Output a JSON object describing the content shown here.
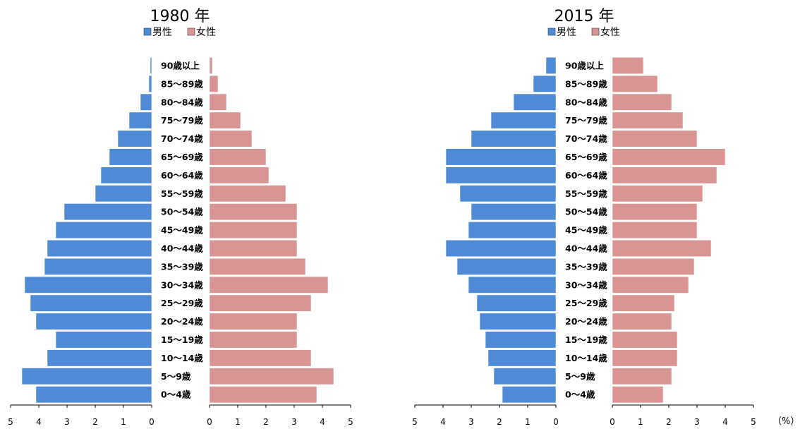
{
  "unit_label": "（%）",
  "chart_data": [
    {
      "type": "bar",
      "orientation": "horizontal-butterfly",
      "title": "1980 年",
      "legend": {
        "placement": "top",
        "entries": [
          "男性",
          "女性"
        ]
      },
      "categories": [
        "0～4歳",
        "5～9歳",
        "10～14歳",
        "15～19歳",
        "20～24歳",
        "25～29歳",
        "30～34歳",
        "35～39歳",
        "40～44歳",
        "45～49歳",
        "50～54歳",
        "55～59歳",
        "60～64歳",
        "65～69歳",
        "70～74歳",
        "75～79歳",
        "80～84歳",
        "85～89歳",
        "90歳以上"
      ],
      "xlim": [
        0,
        5
      ],
      "ticks": [
        "0",
        "1",
        "2",
        "3",
        "4",
        "5"
      ],
      "series": [
        {
          "name": "男性",
          "color": "#4f8ad6",
          "values": [
            4.1,
            4.6,
            3.7,
            3.4,
            4.1,
            4.3,
            4.5,
            3.8,
            3.7,
            3.4,
            3.1,
            2.0,
            1.8,
            1.5,
            1.2,
            0.8,
            0.4,
            0.1,
            0.05
          ]
        },
        {
          "name": "女性",
          "color": "#d99594",
          "values": [
            3.8,
            4.4,
            3.6,
            3.1,
            3.1,
            3.6,
            4.2,
            3.4,
            3.1,
            3.1,
            3.1,
            2.7,
            2.1,
            2.0,
            1.5,
            1.1,
            0.6,
            0.3,
            0.1
          ]
        }
      ]
    },
    {
      "type": "bar",
      "orientation": "horizontal-butterfly",
      "title": "2015 年",
      "legend": {
        "placement": "top",
        "entries": [
          "男性",
          "女性"
        ]
      },
      "categories": [
        "0～4歳",
        "5～9歳",
        "10～14歳",
        "15～19歳",
        "20～24歳",
        "25～29歳",
        "30～34歳",
        "35～39歳",
        "40～44歳",
        "45～49歳",
        "50～54歳",
        "55～59歳",
        "60～64歳",
        "65～69歳",
        "70～74歳",
        "75～79歳",
        "80～84歳",
        "85～89歳",
        "90歳以上"
      ],
      "xlim": [
        0,
        5
      ],
      "ticks": [
        "0",
        "1",
        "2",
        "3",
        "4",
        "5"
      ],
      "series": [
        {
          "name": "男性",
          "color": "#4f8ad6",
          "values": [
            1.9,
            2.2,
            2.4,
            2.5,
            2.7,
            2.8,
            3.1,
            3.5,
            3.9,
            3.1,
            3.0,
            3.4,
            3.9,
            3.9,
            3.0,
            2.3,
            1.5,
            0.8,
            0.35
          ]
        },
        {
          "name": "女性",
          "color": "#d99594",
          "values": [
            1.8,
            2.1,
            2.3,
            2.3,
            2.1,
            2.2,
            2.7,
            2.9,
            3.5,
            3.0,
            3.0,
            3.2,
            3.7,
            4.0,
            3.0,
            2.5,
            2.1,
            1.6,
            1.1
          ]
        }
      ]
    }
  ]
}
